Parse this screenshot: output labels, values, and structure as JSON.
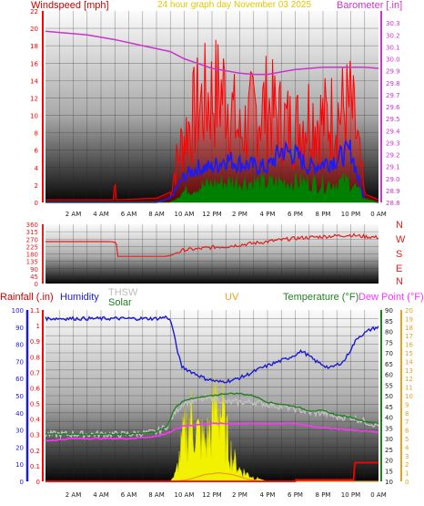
{
  "header": {
    "wind_label": "Windspeed [mph]",
    "title": "24 hour graph day   November 03 2025",
    "baro_label": "Barometer [.in]"
  },
  "middle": {
    "compass": [
      "N",
      "W",
      "S",
      "E",
      "N"
    ]
  },
  "bottom_header": {
    "rain": "Rainfall (.in)",
    "humidity": "Humidity",
    "thsw": "THSW",
    "solar": "Solar",
    "uv": "UV",
    "temperature": "Temperature (°F)",
    "dewpoint": "Dew Point (°F)"
  },
  "colors": {
    "wind": "#ff0000",
    "avg_wind": "#1a1aff",
    "gust": "#008000",
    "barometer": "#cc33cc",
    "direction": "#e02020",
    "rain": "#ff0000",
    "humidity": "#1c1cd0",
    "thsw": "#c0c0c0",
    "solar": "#f2f200",
    "uv": "#e8a020",
    "temperature": "#208020",
    "dewpoint": "#ff33ff"
  },
  "chart_data": [
    {
      "type": "line",
      "name": "wind-barometer",
      "x_ticks": [
        "2 AM",
        "4 AM",
        "6 AM",
        "8 AM",
        "10 AM",
        "12 PM",
        "2 PM",
        "4 PM",
        "6 PM",
        "8 PM",
        "10 PM",
        "0 AM"
      ],
      "xlim": [
        0,
        24
      ],
      "left_axis": {
        "label": "Windspeed [mph]",
        "ylim": [
          0,
          22
        ],
        "ticks": [
          0,
          2,
          4,
          6,
          8,
          10,
          12,
          14,
          16,
          18,
          20,
          22
        ]
      },
      "right_axis": {
        "label": "Barometer [.in]",
        "ylim": [
          28.8,
          30.4
        ],
        "ticks": [
          "28.8",
          "28.9",
          "29.0",
          "29.1",
          "29.2",
          "29.3",
          "29.4",
          "29.5",
          "29.6",
          "29.7",
          "29.8",
          "29.9",
          "30.0",
          "30.1",
          "30.2",
          "30.3"
        ]
      },
      "series": [
        {
          "name": "Windspeed",
          "axis": "left",
          "style": "spiky",
          "x": [
            0,
            4.9,
            5.0,
            5.1,
            8.0,
            9.0,
            9.5,
            10,
            11,
            12,
            13,
            14,
            15,
            16,
            17,
            18,
            19,
            20,
            21,
            22,
            22.5,
            23,
            24
          ],
          "values": [
            0.3,
            0.3,
            3.4,
            0.3,
            0.5,
            1.2,
            6,
            9,
            13,
            14.5,
            15,
            9,
            12,
            13,
            11,
            10,
            12,
            11,
            12,
            13,
            8,
            1,
            0.3
          ]
        },
        {
          "x": [
            0,
            8,
            9,
            10,
            11,
            12,
            13,
            14,
            15,
            16,
            17,
            18,
            19,
            20,
            21,
            22,
            22.5,
            23,
            24
          ],
          "values": [
            0,
            0,
            0.5,
            3,
            4,
            4,
            5,
            4.5,
            4.2,
            4,
            6,
            5.5,
            4,
            4.5,
            5,
            6,
            3,
            0.2,
            0
          ]
        },
        {
          "x": [
            0,
            9,
            10,
            12,
            14,
            16,
            18,
            20,
            22,
            23,
            24
          ],
          "values": [
            0,
            0,
            1.5,
            2.5,
            2.8,
            2.6,
            2.8,
            2.5,
            2.8,
            0.5,
            0
          ]
        },
        {
          "name": "Barometer",
          "axis": "right",
          "x": [
            0,
            1,
            3,
            5,
            7,
            9,
            10,
            11,
            12,
            13,
            14,
            15,
            16,
            17,
            18,
            19,
            20,
            21,
            22,
            23,
            24
          ],
          "values": [
            30.23,
            30.22,
            30.2,
            30.16,
            30.11,
            30.06,
            30.0,
            29.96,
            29.92,
            29.9,
            29.88,
            29.87,
            29.87,
            29.89,
            29.91,
            29.92,
            29.93,
            29.93,
            29.93,
            29.93,
            29.92
          ]
        }
      ]
    },
    {
      "type": "line",
      "name": "wind-direction",
      "xlim": [
        0,
        24
      ],
      "ylim": [
        0,
        360
      ],
      "y_ticks": [
        0,
        45,
        90,
        135,
        180,
        225,
        270,
        315,
        360
      ],
      "series": [
        {
          "name": "Direction",
          "x": [
            0,
            4.6,
            5.1,
            5.2,
            8.6,
            9.0,
            9.4,
            10,
            11,
            12,
            13,
            14,
            15,
            16,
            17,
            18,
            19,
            20,
            21,
            22,
            23,
            24
          ],
          "values": [
            255,
            255,
            250,
            165,
            165,
            170,
            185,
            205,
            210,
            220,
            225,
            235,
            245,
            255,
            265,
            275,
            280,
            285,
            290,
            295,
            285,
            280
          ]
        }
      ]
    },
    {
      "type": "line",
      "name": "temperature-humidity-solar",
      "xlim": [
        0,
        24
      ],
      "left_axis_rain": {
        "label": "Rainfall (.in)",
        "ylim": [
          0,
          1.1
        ],
        "ticks": [
          "0",
          "0.1",
          "0.2",
          "0.3",
          "0.4",
          "0.5",
          "0.6",
          "0.7",
          "0.8",
          "0.9",
          "1",
          "1.1"
        ]
      },
      "left_axis_humidity": {
        "label": "Humidity",
        "ylim": [
          0,
          100
        ],
        "ticks": [
          0,
          10,
          20,
          30,
          40,
          50,
          60,
          70,
          80,
          90,
          100
        ]
      },
      "right_axis_temp": {
        "label": "Temperature (°F)",
        "ylim": [
          10,
          90
        ],
        "ticks": [
          10,
          15,
          20,
          25,
          30,
          35,
          40,
          45,
          50,
          55,
          60,
          65,
          70,
          75,
          80,
          85,
          90
        ]
      },
      "right_axis_uv": {
        "label": "UV",
        "ylim": [
          0,
          20
        ],
        "ticks": [
          0,
          1,
          2,
          3,
          4,
          5,
          6,
          7,
          8,
          9,
          10,
          11,
          12,
          13,
          14,
          15,
          16,
          17,
          18,
          19,
          20
        ]
      },
      "series": [
        {
          "name": "Humidity",
          "axis": "humidity",
          "x": [
            0,
            2,
            4,
            6,
            8,
            8.8,
            9.1,
            9.4,
            9.8,
            10.5,
            11.5,
            12.5,
            13.5,
            14.5,
            15.5,
            16.5,
            17.5,
            18.5,
            19.5,
            20.5,
            21.5,
            22.5,
            23.5,
            24
          ],
          "values": [
            95,
            95,
            95,
            95,
            95,
            96,
            92,
            80,
            67,
            64,
            60,
            58,
            59,
            62,
            66,
            69,
            72,
            76,
            70,
            66,
            70,
            84,
            89,
            90
          ]
        },
        {
          "name": "THSW",
          "axis": "temp",
          "x": [
            0,
            2,
            4,
            6,
            8,
            8.8,
            9.3,
            10,
            11,
            12,
            13,
            14,
            15,
            16,
            17,
            18,
            19,
            20,
            21,
            22,
            23,
            24
          ],
          "values": [
            32,
            32,
            32,
            32,
            33,
            36,
            42,
            47,
            48,
            49,
            47,
            47,
            47,
            46,
            45,
            44,
            42,
            42,
            40,
            40,
            38,
            36
          ]
        },
        {
          "name": "Temperature",
          "axis": "temp",
          "x": [
            0,
            2,
            4,
            6,
            8,
            8.8,
            9.3,
            10,
            11,
            12,
            13,
            14,
            15,
            16,
            17,
            18,
            19,
            20,
            21,
            22,
            23,
            24
          ],
          "values": [
            32,
            32,
            32,
            32,
            33,
            36,
            44,
            48,
            49,
            50,
            51,
            51,
            50,
            47,
            46,
            45,
            43,
            43,
            41,
            40,
            38,
            37
          ]
        },
        {
          "name": "Dew Point",
          "axis": "temp",
          "x": [
            0,
            2,
            4,
            6,
            8,
            9,
            10,
            12,
            14,
            16,
            18,
            20,
            22,
            24
          ],
          "values": [
            29,
            30,
            30,
            30,
            31,
            33,
            36,
            37,
            37,
            37,
            37,
            35,
            34,
            33
          ]
        },
        {
          "name": "Solar",
          "axis": "uv",
          "x": [
            0,
            9,
            9.4,
            10,
            10.5,
            11,
            11.5,
            12,
            12.3,
            12.7,
            13,
            13.5,
            14,
            15,
            16,
            24
          ],
          "values": [
            0,
            0,
            1,
            6,
            8,
            6,
            5,
            7,
            11,
            9,
            6,
            3,
            1.5,
            0.5,
            0,
            0
          ]
        },
        {
          "name": "UV",
          "axis": "uv",
          "x": [
            0,
            9.5,
            10.5,
            11.5,
            12.5,
            13.5,
            14.5,
            15.5,
            24
          ],
          "values": [
            0,
            0,
            0.3,
            0.8,
            1.0,
            0.8,
            0.3,
            0,
            0
          ]
        },
        {
          "name": "Rainfall",
          "axis": "rain",
          "x": [
            0,
            18,
            18.05,
            22.2,
            22.3,
            24
          ],
          "values": [
            0,
            0,
            0.01,
            0.01,
            0.12,
            0.12
          ]
        }
      ]
    }
  ]
}
